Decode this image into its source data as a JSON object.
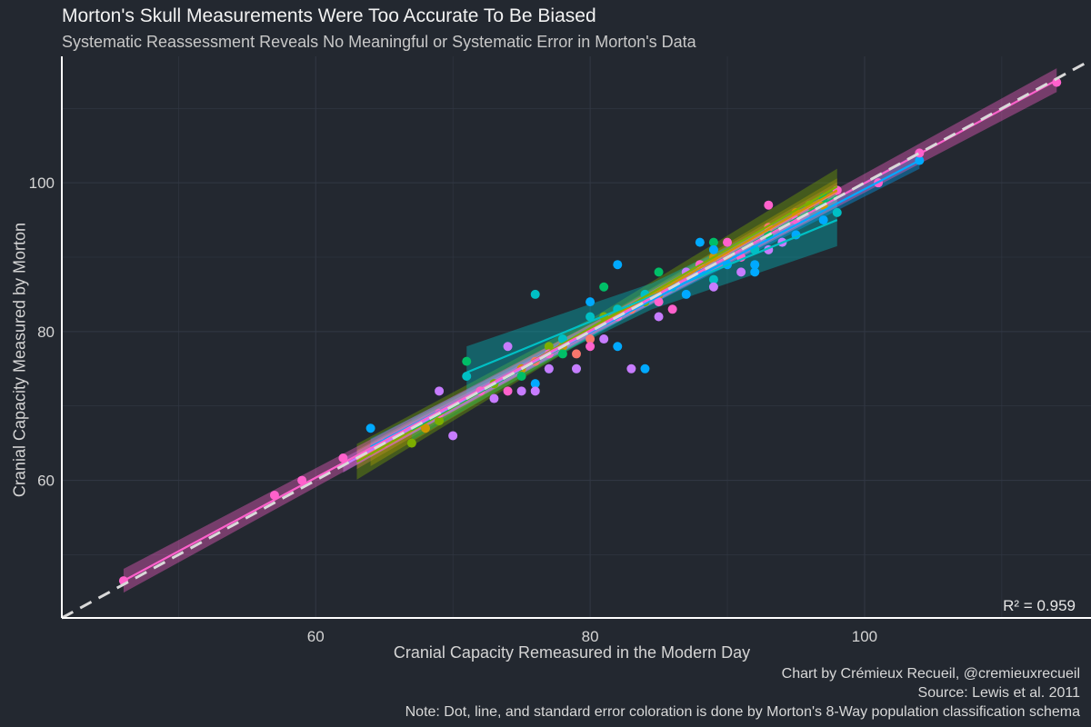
{
  "title": "Morton's Skull Measurements Were Too Accurate To Be Biased",
  "subtitle": "Systematic Reassessment Reveals No Meaningful or Systematic Error in Morton's Data",
  "caption": {
    "line1": "Chart by Crémieux Recueil, @cremieuxrecueil",
    "line2": "Source: Lewis et al. 2011",
    "line3": "Note: Dot, line, and standard error coloration is done by Morton's 8-Way population classification schema"
  },
  "colors": {
    "background": "#232830",
    "grid": "#323844",
    "axis": "#ffffff",
    "identity_line": "#d9d9d9",
    "groups": [
      "#F8766D",
      "#CD9600",
      "#7CAE00",
      "#00BE67",
      "#00BFC4",
      "#00A9FF",
      "#C77CFF",
      "#FF61CC"
    ]
  },
  "chart_data": {
    "type": "scatter",
    "title": "Morton's Skull Measurements Were Too Accurate To Be Biased",
    "subtitle": "Systematic Reassessment Reveals No Meaningful or Systematic Error in Morton's Data",
    "xlabel": "Cranial Capacity Remeasured in the Modern Day",
    "ylabel": "Cranial Capacity Measured by Morton",
    "xlim": [
      41.5,
      116.5
    ],
    "ylim": [
      41.5,
      117
    ],
    "xticks": [
      60,
      80,
      100
    ],
    "yticks": [
      60,
      80,
      100
    ],
    "grid": true,
    "legend": "none",
    "annotation": "R² = 0.959",
    "reference_line": {
      "slope": 1,
      "intercept": 0,
      "style": "dashed"
    },
    "fits": [
      {
        "group": 0,
        "x": [
          63,
          98
        ],
        "y": [
          62.8,
          98.8
        ],
        "se": 0.8
      },
      {
        "group": 1,
        "x": [
          64,
          98
        ],
        "y": [
          63.5,
          99
        ],
        "se": 1.0
      },
      {
        "group": 2,
        "x": [
          63,
          98
        ],
        "y": [
          62.5,
          99.5
        ],
        "se": 1.5
      },
      {
        "group": 3,
        "x": [
          67,
          98
        ],
        "y": [
          66.8,
          98.2
        ],
        "se": 0.9
      },
      {
        "group": 4,
        "x": [
          71,
          98
        ],
        "y": [
          74.5,
          95
        ],
        "se": 2.2
      },
      {
        "group": 5,
        "x": [
          64,
          104
        ],
        "y": [
          64.5,
          103
        ],
        "se": 0.7
      },
      {
        "group": 6,
        "x": [
          62,
          96
        ],
        "y": [
          62,
          96
        ],
        "se": 0.6
      },
      {
        "group": 7,
        "x": [
          46,
          114
        ],
        "y": [
          46.5,
          113.8
        ],
        "se": 1.0
      }
    ],
    "series": [
      {
        "group": 0,
        "x": [
          76,
          79,
          80,
          83,
          86,
          90,
          93,
          96
        ],
        "y": [
          76,
          77,
          79,
          83,
          86,
          90,
          94,
          97
        ]
      },
      {
        "group": 1,
        "x": [
          68,
          72,
          75,
          78,
          82,
          85,
          89,
          95,
          97
        ],
        "y": [
          67,
          72,
          75,
          78,
          82,
          85,
          90,
          96,
          97
        ]
      },
      {
        "group": 2,
        "x": [
          67,
          69,
          73,
          77,
          81,
          84,
          88,
          92,
          96
        ],
        "y": [
          65,
          68,
          73,
          78,
          82,
          84,
          89,
          91,
          97
        ]
      },
      {
        "group": 3,
        "x": [
          71,
          75,
          78,
          79,
          81,
          84,
          85,
          89,
          93,
          97
        ],
        "y": [
          76,
          74,
          77,
          75,
          86,
          85,
          88,
          92,
          93,
          98
        ]
      },
      {
        "group": 4,
        "x": [
          71,
          76,
          78,
          80,
          82,
          84,
          86,
          88,
          89,
          92,
          95,
          98
        ],
        "y": [
          74,
          85,
          79,
          82,
          83,
          85,
          86,
          88,
          87,
          91,
          95,
          96
        ]
      },
      {
        "group": 5,
        "x": [
          64,
          76,
          77,
          80,
          82,
          82,
          84,
          85,
          87,
          88,
          88,
          89,
          90,
          92,
          92,
          94,
          95,
          97,
          104
        ],
        "y": [
          67,
          73,
          75,
          84,
          89,
          78,
          75,
          84,
          85,
          92,
          88,
          91,
          89,
          89,
          88,
          92,
          93,
          95,
          103
        ]
      },
      {
        "group": 6,
        "x": [
          69,
          70,
          73,
          74,
          75,
          76,
          77,
          79,
          81,
          83,
          85,
          87,
          89,
          91,
          93,
          94
        ],
        "y": [
          72,
          66,
          71,
          78,
          72,
          72,
          75,
          75,
          79,
          75,
          82,
          88,
          86,
          88,
          91,
          92
        ]
      },
      {
        "group": 7,
        "x": [
          46,
          57,
          59,
          62,
          65,
          69,
          72,
          74,
          77,
          80,
          82,
          85,
          86,
          88,
          90,
          91,
          93,
          95,
          98,
          101,
          104,
          114
        ],
        "y": [
          46.5,
          58,
          60,
          63,
          65,
          69,
          72,
          72,
          77,
          78,
          82,
          84,
          83,
          89,
          92,
          90,
          97,
          95,
          99,
          100,
          104,
          113.5
        ]
      }
    ]
  }
}
